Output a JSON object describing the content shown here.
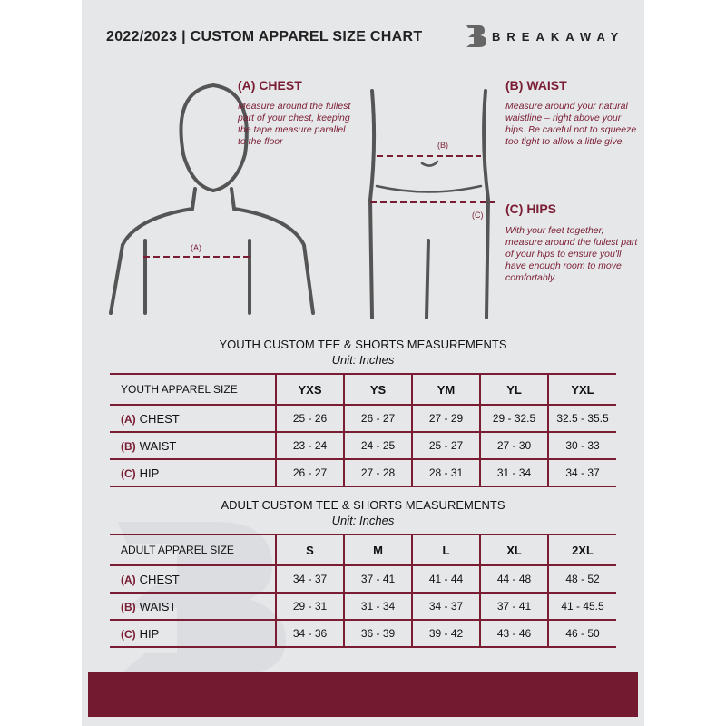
{
  "header": {
    "title": "2022/2023  |  CUSTOM APPAREL SIZE CHART",
    "brand": "BREAKAWAY"
  },
  "colors": {
    "accent": "#7a1c33",
    "background": "#e6e7e9",
    "footer": "#731a31"
  },
  "chest": {
    "heading": "(A) CHEST",
    "text": "Measure around the fullest part of your chest, keeping the tape measure parallel to the floor",
    "marker": "(A)"
  },
  "waist": {
    "heading": "(B) WAIST",
    "text": "Measure around your natural waistline – right above your hips. Be careful not to squeeze too tight to allow a little give.",
    "marker": "(B)"
  },
  "hips": {
    "heading": "(C) HIPS",
    "text": "With your feet together, measure around the fullest part of your hips to ensure you'll have enough room to move comfortably.",
    "marker": "(C)"
  },
  "youth": {
    "title": "YOUTH CUSTOM TEE & SHORTS MEASUREMENTS",
    "unit": "Unit: Inches",
    "header": [
      "YOUTH APPAREL SIZE",
      "YXS",
      "YS",
      "YM",
      "YL",
      "YXL"
    ],
    "rows": [
      {
        "code": "(A)",
        "name": "CHEST",
        "values": [
          "25 - 26",
          "26 - 27",
          "27 - 29",
          "29 - 32.5",
          "32.5 - 35.5"
        ]
      },
      {
        "code": "(B)",
        "name": "WAIST",
        "values": [
          "23 - 24",
          "24 - 25",
          "25 - 27",
          "27 - 30",
          "30 - 33"
        ]
      },
      {
        "code": "(C)",
        "name": "HIP",
        "values": [
          "26 - 27",
          "27 - 28",
          "28 - 31",
          "31 - 34",
          "34 - 37"
        ]
      }
    ]
  },
  "adult": {
    "title": "ADULT CUSTOM TEE & SHORTS MEASUREMENTS",
    "unit": "Unit: Inches",
    "header": [
      "ADULT APPAREL SIZE",
      "S",
      "M",
      "L",
      "XL",
      "2XL"
    ],
    "rows": [
      {
        "code": "(A)",
        "name": "CHEST",
        "values": [
          "34 - 37",
          "37 - 41",
          "41 - 44",
          "44 - 48",
          "48 - 52"
        ]
      },
      {
        "code": "(B)",
        "name": "WAIST",
        "values": [
          "29 - 31",
          "31 - 34",
          "34 - 37",
          "37 - 41",
          "41 - 45.5"
        ]
      },
      {
        "code": "(C)",
        "name": "HIP",
        "values": [
          "34 - 36",
          "36 - 39",
          "39 - 42",
          "43 - 46",
          "46 - 50"
        ]
      }
    ]
  }
}
